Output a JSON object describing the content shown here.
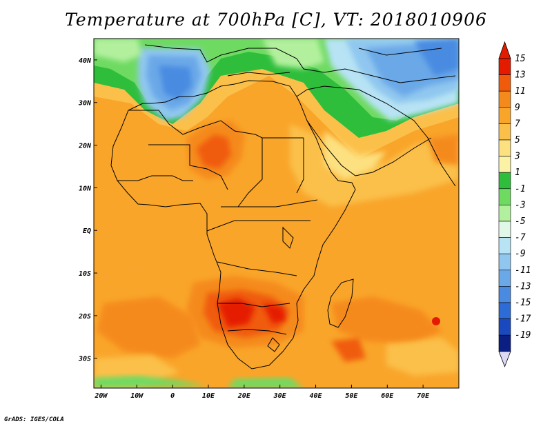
{
  "title": "Temperature at 700hPa [C], VT: 2018010906",
  "credit": "GrADS: IGES/COLA",
  "map": {
    "lon_range": [
      -22,
      80
    ],
    "lat_range": [
      -37,
      45
    ],
    "lat_ticks": [
      {
        "value": 40,
        "label": "40N"
      },
      {
        "value": 30,
        "label": "30N"
      },
      {
        "value": 20,
        "label": "20N"
      },
      {
        "value": 10,
        "label": "10N"
      },
      {
        "value": 0,
        "label": "EQ"
      },
      {
        "value": -10,
        "label": "10S"
      },
      {
        "value": -20,
        "label": "20S"
      },
      {
        "value": -30,
        "label": "30S"
      }
    ],
    "lon_ticks": [
      {
        "value": -20,
        "label": "20W"
      },
      {
        "value": -10,
        "label": "10W"
      },
      {
        "value": 0,
        "label": "0"
      },
      {
        "value": 10,
        "label": "10E"
      },
      {
        "value": 20,
        "label": "20E"
      },
      {
        "value": 30,
        "label": "30E"
      },
      {
        "value": 40,
        "label": "40E"
      },
      {
        "value": 50,
        "label": "50E"
      },
      {
        "value": 60,
        "label": "60E"
      },
      {
        "value": 70,
        "label": "70E"
      }
    ]
  },
  "colorbar": {
    "labels": [
      "15",
      "13",
      "11",
      "9",
      "7",
      "5",
      "3",
      "1",
      "-1",
      "-3",
      "-5",
      "-7",
      "-9",
      "-11",
      "-13",
      "-15",
      "-17",
      "-19"
    ],
    "colors": [
      "#e51b00",
      "#f05b0b",
      "#f58a1c",
      "#f9a52a",
      "#fbc04a",
      "#fde07f",
      "#fbf2a6",
      "#2fbe3c",
      "#6fda62",
      "#b3f09e",
      "#e1f8e9",
      "#b7e3f4",
      "#90c7ef",
      "#6aa8e8",
      "#4a8be1",
      "#2d6bd6",
      "#1a49bf",
      "#0a1e83"
    ],
    "top_arrow_color": "#e51b00",
    "bottom_arrow_color": "#ddd8f4"
  },
  "temperature_field": {
    "background_color": "#f9a52a",
    "regions": [
      {
        "name": "north-blue",
        "color": "#4a8be1",
        "lon": [
          -15,
          75
        ],
        "lat": [
          33,
          45
        ]
      },
      {
        "name": "sahara-hot",
        "color": "#f58a1c",
        "lon": [
          6,
          20
        ],
        "lat": [
          10,
          24
        ]
      },
      {
        "name": "southern-hot",
        "color": "#e51b00",
        "lon": [
          12,
          34
        ],
        "lat": [
          -25,
          -16
        ]
      },
      {
        "name": "east-green",
        "color": "#2fbe3c",
        "lon": [
          38,
          56
        ],
        "lat": [
          18,
          34
        ]
      },
      {
        "name": "south-green",
        "color": "#6fda62",
        "lon": [
          -18,
          28
        ],
        "lat": [
          -37,
          -35
        ]
      }
    ]
  }
}
